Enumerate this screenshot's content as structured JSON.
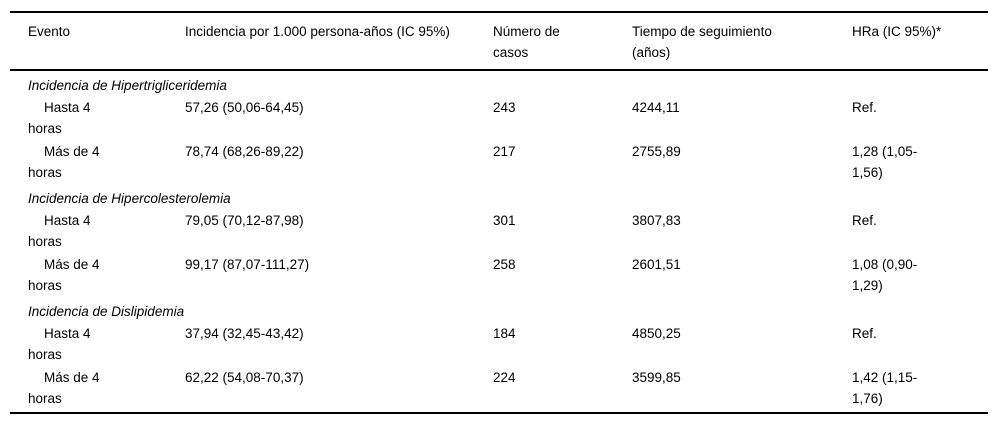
{
  "table": {
    "columns": [
      "Evento",
      "Incidencia por 1.000 persona-años (IC 95%)",
      "Número de casos",
      "Tiempo de seguimiento (años)",
      "HRa (IC 95%)*"
    ],
    "sections": [
      {
        "title": "Incidencia de Hipertrigliceridemia",
        "rows": [
          {
            "evento": "Hasta 4 horas",
            "incidencia": "57,26 (50,06-64,45)",
            "casos": "243",
            "tiempo": "4244,11",
            "hra": "Ref."
          },
          {
            "evento": "Más de 4 horas",
            "incidencia": "78,74 (68,26-89,22)",
            "casos": "217",
            "tiempo": "2755,89",
            "hra": "1,28 (1,05-1,56)"
          }
        ]
      },
      {
        "title": "Incidencia de Hipercolesterolemia",
        "rows": [
          {
            "evento": "Hasta 4 horas",
            "incidencia": "79,05 (70,12-87,98)",
            "casos": "301",
            "tiempo": "3807,83",
            "hra": "Ref."
          },
          {
            "evento": "Más de 4 horas",
            "incidencia": "99,17 (87,07-111,27)",
            "casos": "258",
            "tiempo": "2601,51",
            "hra": "1,08 (0,90-1,29)"
          }
        ]
      },
      {
        "title": "Incidencia de Dislipidemia",
        "rows": [
          {
            "evento": "Hasta 4 horas",
            "incidencia": "37,94 (32,45-43,42)",
            "casos": "184",
            "tiempo": "4850,25",
            "hra": "Ref."
          },
          {
            "evento": "Más de 4 horas",
            "incidencia": "62,22 (54,08-70,37)",
            "casos": "224",
            "tiempo": "3599,85",
            "hra": "1,42 (1,15-1,76)"
          }
        ]
      }
    ]
  }
}
